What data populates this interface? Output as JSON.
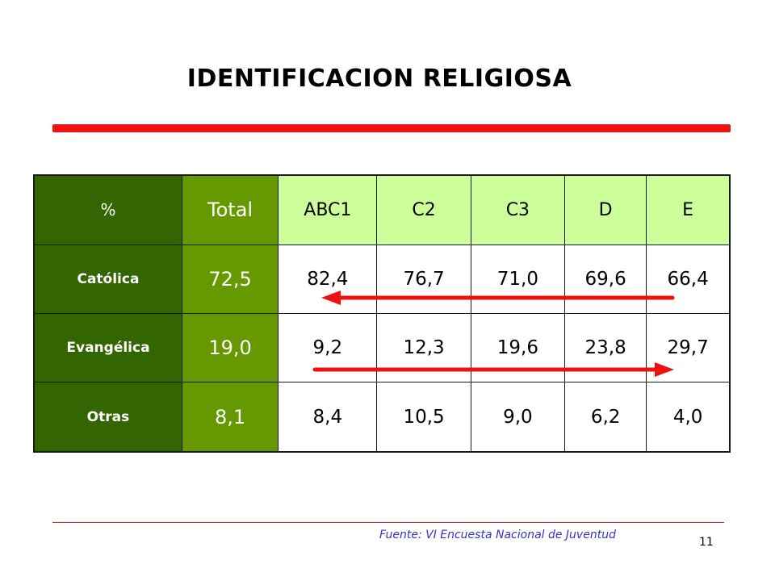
{
  "slide": {
    "title": "IDENTIFICACION RELIGIOSA",
    "source": "Fuente: VI Encuesta Nacional de Juventud",
    "page_number": "11"
  },
  "table": {
    "corner_label": "%",
    "columns": [
      "Total",
      "ABC1",
      "C2",
      "C3",
      "D",
      "E"
    ],
    "rows": [
      {
        "label": "Católica",
        "total": "72,5",
        "values": [
          "82,4",
          "76,7",
          "71,0",
          "69,6",
          "66,4"
        ]
      },
      {
        "label": "Evangélica",
        "total": "19,0",
        "values": [
          "9,2",
          "12,3",
          "19,6",
          "23,8",
          "29,7"
        ]
      },
      {
        "label": "Otras",
        "total": "8,1",
        "values": [
          "8,4",
          "10,5",
          "9,0",
          "6,2",
          "4,0"
        ]
      }
    ]
  },
  "annotations": {
    "arrow_color": "#ee1111",
    "arrows": [
      {
        "row": "Católica",
        "direction": "left"
      },
      {
        "row": "Evangélica",
        "direction": "right"
      }
    ]
  }
}
